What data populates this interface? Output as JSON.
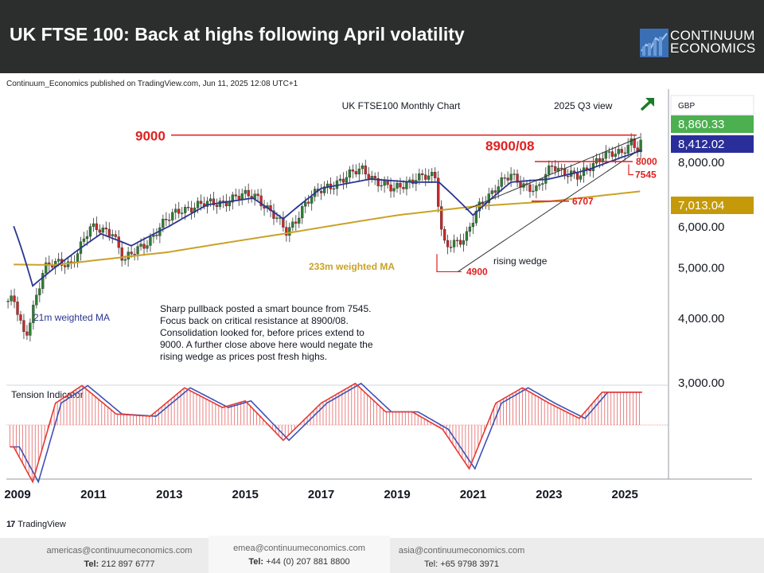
{
  "header": {
    "title": "UK FTSE 100: Back at highs following April volatility",
    "logo_line1": "CONTINUUM",
    "logo_line2": "ECONOMICS",
    "brand_color": "#2b2e2d"
  },
  "published": "Continuum_Economics published on TradingView.com, Jun 11, 2025 12:08 UTC+1",
  "footer": {
    "contacts": [
      {
        "email": "americas@continuumeconomics.com",
        "tel_label": "Tel:",
        "tel": "212 897 6777"
      },
      {
        "email": "emea@continuumeconomics.com",
        "tel_label": "Tel:",
        "tel": "+44 (0) 207 881 8800"
      },
      {
        "email": "asia@continuumeconomics.com",
        "tel_label": "Tel:",
        "tel": "+65 9798 3971"
      }
    ],
    "tradingview": "TradingView"
  },
  "chart_data": {
    "type": "candlestick",
    "title": "UK FTSE100 Monthly Chart",
    "view_label": "2025 Q3 view",
    "currency": "GBP",
    "x_ticks": [
      "2009",
      "2011",
      "2013",
      "2015",
      "2017",
      "2019",
      "2021",
      "2023",
      "2025"
    ],
    "y_ticks": [
      "3,000.00",
      "4,000.00",
      "5,000.00",
      "6,000.00",
      "8,000.00"
    ],
    "y_log_scale": true,
    "price_badges": [
      {
        "label": "8,860.33",
        "color": "#4caf50"
      },
      {
        "label": "8,412.02",
        "color": "#2a2e9a"
      },
      {
        "label": "7,013.04",
        "color": "#c49a0a"
      }
    ],
    "levels": [
      {
        "label": "9000",
        "value": 9000,
        "color": "#e02020"
      },
      {
        "label": "8900/08",
        "value": 8904,
        "color": "#e02020"
      },
      {
        "label": "8000",
        "value": 8000,
        "color": "#e02020"
      },
      {
        "label": "7545",
        "value": 7545,
        "color": "#e02020"
      },
      {
        "label": "6707",
        "value": 6707,
        "color": "#e02020"
      },
      {
        "label": "4900",
        "value": 4900,
        "color": "#e02020"
      }
    ],
    "ma_labels": {
      "ma21": "21m weighted MA",
      "ma233": "233m weighted MA",
      "wedge": "rising wedge"
    },
    "ma_colors": {
      "ma21": "#2a3590",
      "ma233": "#c9a227"
    },
    "annotation": [
      "Sharp pullback posted a smart bounce from 7545.",
      "Focus back on critical resistance at 8900/08.",
      "Consolidation looked for, before prices extend to",
      "9000. A further close above here would negate the",
      "rising wedge as prices post fresh highs."
    ],
    "indicator_title": "Tension Indicator",
    "monthly_close_anchors": [
      {
        "year": 2008.9,
        "value": 4300
      },
      {
        "year": 2009.2,
        "value": 3600
      },
      {
        "year": 2009.7,
        "value": 5000
      },
      {
        "year": 2010.4,
        "value": 5100
      },
      {
        "year": 2010.9,
        "value": 5900
      },
      {
        "year": 2011.5,
        "value": 5900
      },
      {
        "year": 2011.8,
        "value": 5100
      },
      {
        "year": 2012.5,
        "value": 5700
      },
      {
        "year": 2013.3,
        "value": 6500
      },
      {
        "year": 2014.0,
        "value": 6600
      },
      {
        "year": 2014.7,
        "value": 6800
      },
      {
        "year": 2015.3,
        "value": 6900
      },
      {
        "year": 2016.1,
        "value": 5800
      },
      {
        "year": 2016.6,
        "value": 6700
      },
      {
        "year": 2017.5,
        "value": 7400
      },
      {
        "year": 2018.1,
        "value": 7700
      },
      {
        "year": 2018.9,
        "value": 7000
      },
      {
        "year": 2019.5,
        "value": 7500
      },
      {
        "year": 2020.0,
        "value": 7400
      },
      {
        "year": 2020.2,
        "value": 5600
      },
      {
        "year": 2020.8,
        "value": 5600
      },
      {
        "year": 2021.2,
        "value": 6700
      },
      {
        "year": 2022.0,
        "value": 7500
      },
      {
        "year": 2022.7,
        "value": 7000
      },
      {
        "year": 2023.1,
        "value": 7900
      },
      {
        "year": 2023.8,
        "value": 7400
      },
      {
        "year": 2024.4,
        "value": 8300
      },
      {
        "year": 2024.9,
        "value": 8200
      },
      {
        "year": 2025.2,
        "value": 8850
      },
      {
        "year": 2025.3,
        "value": 8500
      },
      {
        "year": 2025.45,
        "value": 8860
      }
    ],
    "ma21_anchors": [
      {
        "year": 2008.9,
        "value": 6000
      },
      {
        "year": 2009.4,
        "value": 4600
      },
      {
        "year": 2010.0,
        "value": 5000
      },
      {
        "year": 2011.2,
        "value": 5800
      },
      {
        "year": 2012.0,
        "value": 5500
      },
      {
        "year": 2013.0,
        "value": 6000
      },
      {
        "year": 2014.0,
        "value": 6600
      },
      {
        "year": 2015.2,
        "value": 6800
      },
      {
        "year": 2016.0,
        "value": 6200
      },
      {
        "year": 2017.0,
        "value": 7100
      },
      {
        "year": 2018.3,
        "value": 7400
      },
      {
        "year": 2019.4,
        "value": 7300
      },
      {
        "year": 2020.1,
        "value": 7300
      },
      {
        "year": 2021.0,
        "value": 6300
      },
      {
        "year": 2022.0,
        "value": 7300
      },
      {
        "year": 2023.0,
        "value": 7400
      },
      {
        "year": 2024.0,
        "value": 7700
      },
      {
        "year": 2025.45,
        "value": 8412
      }
    ],
    "ma233_anchors": [
      {
        "year": 2008.9,
        "value": 5060
      },
      {
        "year": 2010.0,
        "value": 5050
      },
      {
        "year": 2013.0,
        "value": 5350
      },
      {
        "year": 2016.0,
        "value": 5800
      },
      {
        "year": 2019.0,
        "value": 6300
      },
      {
        "year": 2021.0,
        "value": 6550
      },
      {
        "year": 2023.0,
        "value": 6700
      },
      {
        "year": 2025.45,
        "value": 7013
      }
    ],
    "tension_anchors": [
      {
        "year": 2008.9,
        "value": -0.5
      },
      {
        "year": 2009.4,
        "value": -1.3
      },
      {
        "year": 2010.0,
        "value": 0.5
      },
      {
        "year": 2010.7,
        "value": 0.9
      },
      {
        "year": 2011.6,
        "value": 0.25
      },
      {
        "year": 2012.5,
        "value": 0.2
      },
      {
        "year": 2013.4,
        "value": 0.85
      },
      {
        "year": 2014.4,
        "value": 0.4
      },
      {
        "year": 2015.0,
        "value": 0.55
      },
      {
        "year": 2016.0,
        "value": -0.35
      },
      {
        "year": 2017.0,
        "value": 0.5
      },
      {
        "year": 2017.9,
        "value": 0.95
      },
      {
        "year": 2018.7,
        "value": 0.3
      },
      {
        "year": 2019.4,
        "value": 0.3
      },
      {
        "year": 2020.2,
        "value": -0.1
      },
      {
        "year": 2020.9,
        "value": -1.0
      },
      {
        "year": 2021.6,
        "value": 0.5
      },
      {
        "year": 2022.3,
        "value": 0.85
      },
      {
        "year": 2023.0,
        "value": 0.5
      },
      {
        "year": 2023.8,
        "value": 0.15
      },
      {
        "year": 2024.4,
        "value": 0.75
      },
      {
        "year": 2025.45,
        "value": 0.75
      }
    ]
  }
}
